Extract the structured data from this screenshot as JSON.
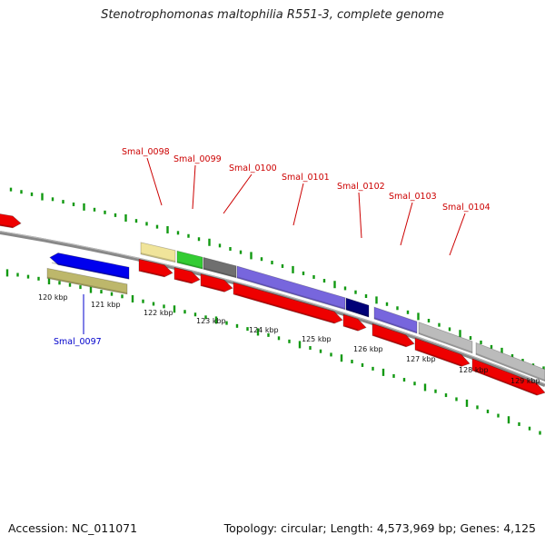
{
  "title": "Stenotrophomonas maltophilia R551-3, complete genome",
  "footer": {
    "accession": "Accession: NC_011071",
    "summary": "Topology: circular; Length: 4,573,969 bp; Genes: 4,125"
  },
  "colors": {
    "cds_forward": "#ee0000",
    "cds_reverse": "#0000ee",
    "backbone": "#888888",
    "gc_ticks": "#119911",
    "label_forward": "#cc0000",
    "label_reverse": "#0000cc"
  },
  "tick_labels": [
    "120 kbp",
    "121 kbp",
    "122 kbp",
    "123 kbp",
    "124 kbp",
    "125 kbp",
    "126 kbp",
    "127 kbp",
    "128 kbp",
    "129 kbp"
  ],
  "gene_labels": [
    {
      "name": "Smal_0097",
      "strand": "reverse"
    },
    {
      "name": "Smal_0098",
      "strand": "forward"
    },
    {
      "name": "Smal_0099",
      "strand": "forward"
    },
    {
      "name": "Smal_0100",
      "strand": "forward"
    },
    {
      "name": "Smal_0101",
      "strand": "forward"
    },
    {
      "name": "Smal_0102",
      "strand": "forward"
    },
    {
      "name": "Smal_0103",
      "strand": "forward"
    },
    {
      "name": "Smal_0104",
      "strand": "forward"
    }
  ]
}
